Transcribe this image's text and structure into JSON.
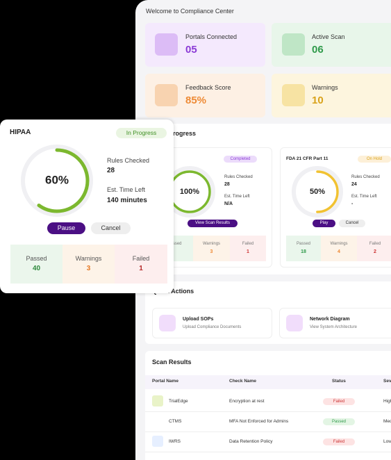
{
  "header": {
    "title": "Welcome to Compliance Center"
  },
  "stats": [
    {
      "label": "Portals Connected",
      "value": "05"
    },
    {
      "label": "Active Scan",
      "value": "06"
    },
    {
      "label": "Feedback Score",
      "value": "85%"
    },
    {
      "label": "Warnings",
      "value": "10"
    }
  ],
  "scan_progress": {
    "title": "Scan Progress",
    "labels": {
      "rules": "Rules Checked",
      "time": "Est. Time Left",
      "passed": "Passed",
      "warnings": "Warnings",
      "failed": "Failed"
    },
    "cards": [
      {
        "status": "Completed",
        "progress": 100,
        "progress_label": "100%",
        "rules": "28",
        "time": "N/A",
        "button": "View Scan Results",
        "passed": "",
        "warnings": "3",
        "failed": "1"
      },
      {
        "name": "FDA 21 CFR Part 11",
        "status": "On Hold",
        "progress": 50,
        "progress_label": "50%",
        "rules": "24",
        "time": "-",
        "button": "Play",
        "cancel": "Cancel",
        "passed": "18",
        "warnings": "4",
        "failed": "2"
      }
    ]
  },
  "quick_actions": {
    "title": "Quick Actions",
    "items": [
      {
        "title": "Upload SOPs",
        "subtitle": "Upload Compliance Documents"
      },
      {
        "title": "Network Diagram",
        "subtitle": "View System Architecture"
      }
    ]
  },
  "scan_results": {
    "title": "Scan Results",
    "columns": [
      "Portal Name",
      "Check Name",
      "Status",
      "Severity"
    ],
    "rows": [
      [
        "TrialEdge",
        "Encryption at rest",
        "Failed",
        "High"
      ],
      [
        "CTMS",
        "MFA Not Enforced for Admins",
        "Passed",
        "Medium"
      ],
      [
        "IWRS",
        "Data Retention Policy",
        "Failed",
        "Low"
      ]
    ]
  },
  "hipaa": {
    "title": "HIPAA",
    "status": "In Progress",
    "progress": 60,
    "progress_label": "60%",
    "rules_label": "Rules Checked",
    "rules": "28",
    "time_label": "Est. Time Left",
    "time": "140 minutes",
    "pause": "Pause",
    "cancel": "Cancel",
    "passed_label": "Passed",
    "passed": "40",
    "warnings_label": "Warnings",
    "warnings": "3",
    "failed_label": "Failed",
    "failed": "1"
  }
}
